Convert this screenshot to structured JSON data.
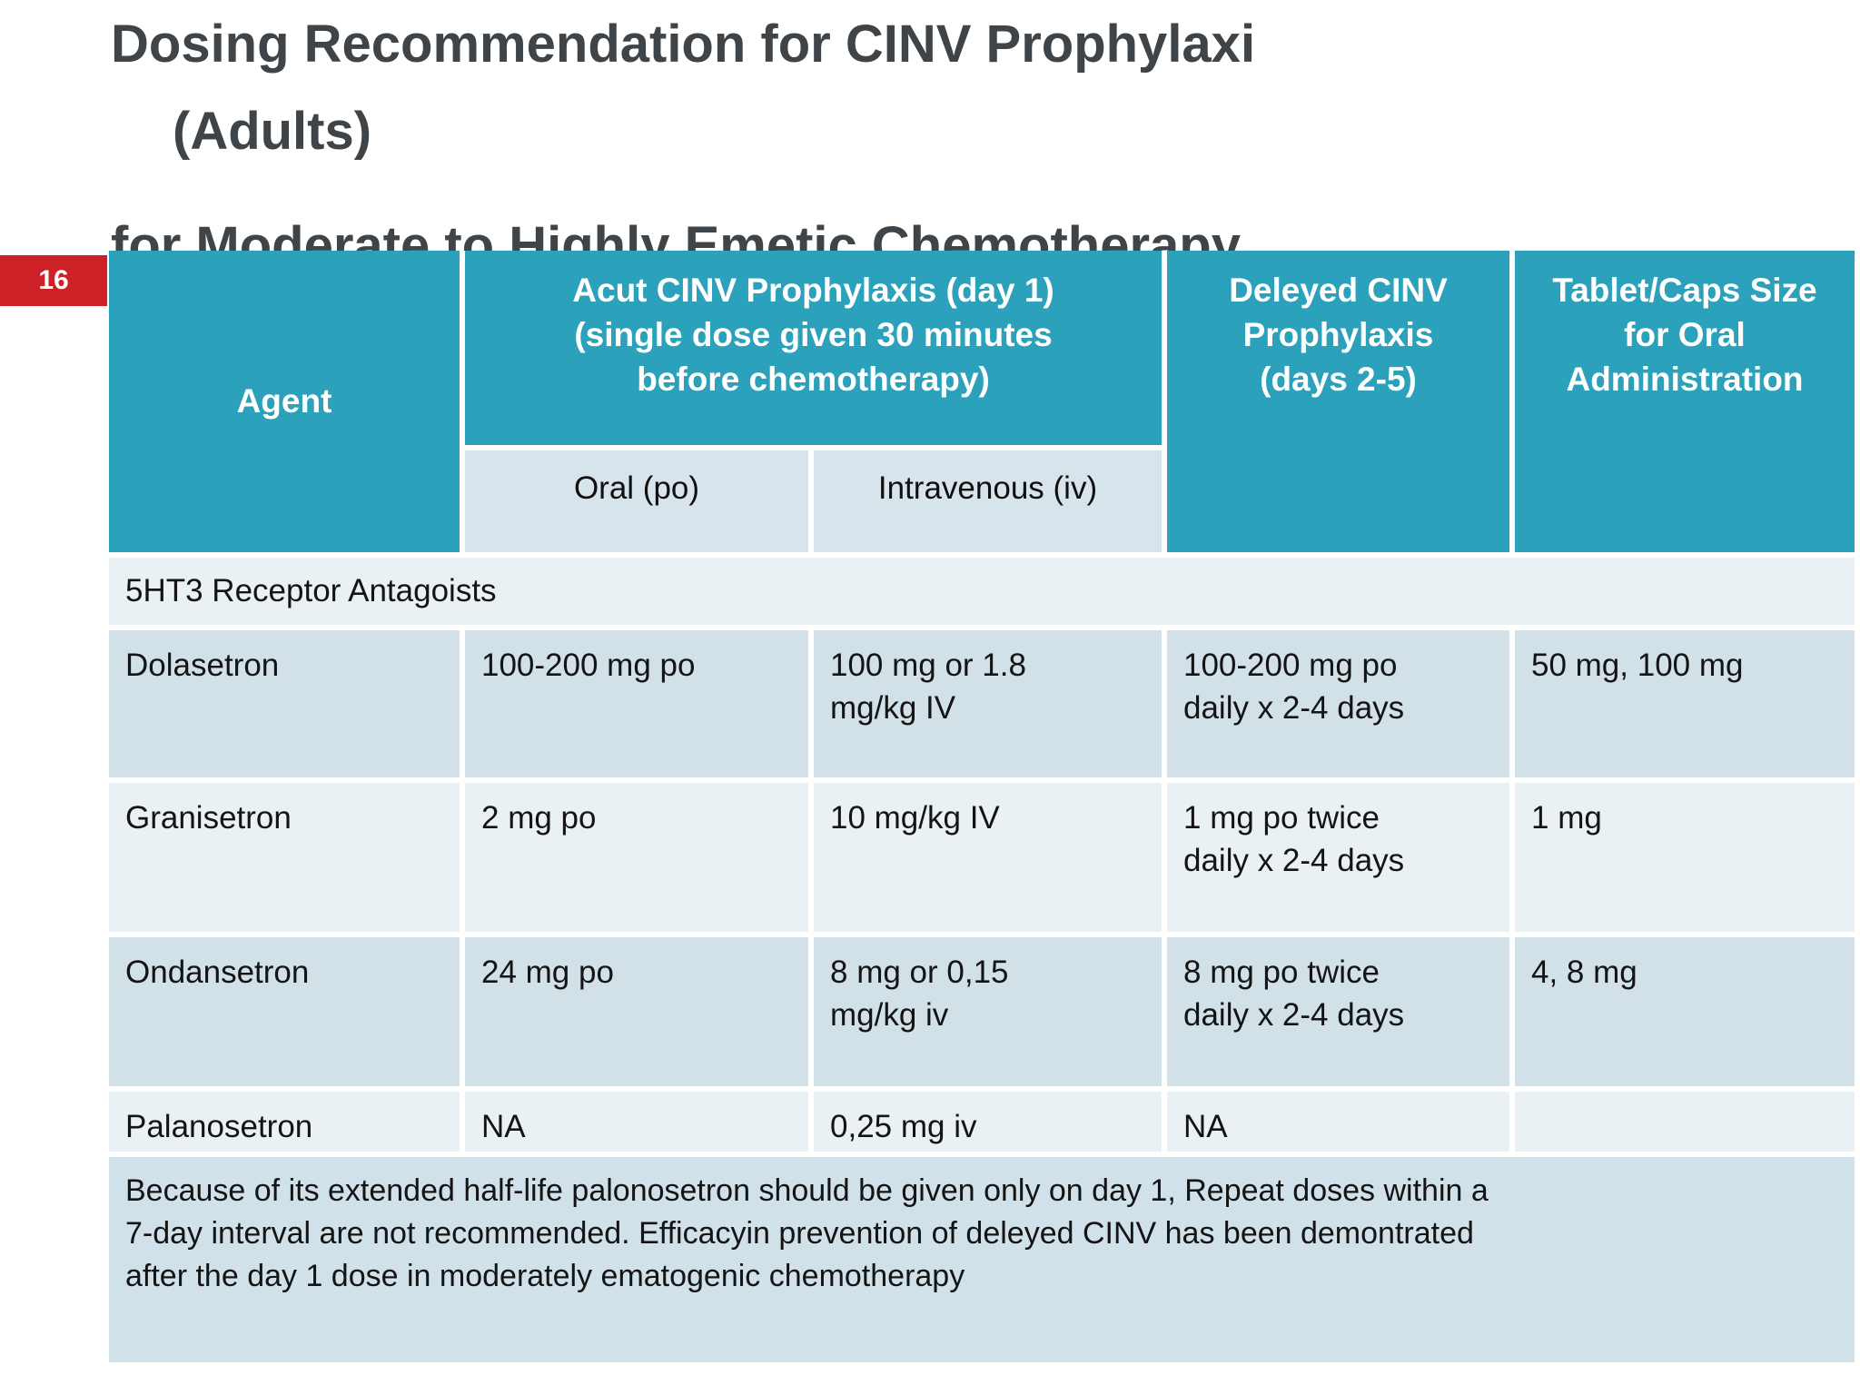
{
  "slide": {
    "title_line1": "Dosing Recommendation for CINV Prophylaxi",
    "title_line2": "(Adults)",
    "title_line3": "for Moderate to Highly Emetic Chemotherapy",
    "page_number": "16"
  },
  "colors": {
    "header_teal": "#2ba1bb",
    "badge_red": "#ce2027",
    "row_light": "#eaf1f5",
    "row_dark": "#d2e0e8",
    "note_bg": "#d0e1e9",
    "title_text": "#3f4448"
  },
  "table": {
    "header": {
      "agent": "Agent",
      "acute": "Acut CINV Prophylaxis (day 1)\n(single dose given 30 minutes\nbefore chemotherapy)",
      "oral": "Oral (po)",
      "iv": "Intravenous (iv)",
      "delayed": "Deleyed CINV\nProphylaxis\n(days 2-5)",
      "tablet": "Tablet/Caps Size\nfor Oral\nAdministration"
    },
    "section": "5HT3 Receptor Antagoists",
    "rows": [
      {
        "agent": "Dolasetron",
        "oral": "100-200 mg po",
        "iv": "100 mg or 1.8\nmg/kg IV",
        "delayed": "100-200 mg po\ndaily x 2-4 days",
        "tablet": "50 mg, 100 mg"
      },
      {
        "agent": "Granisetron",
        "oral": "2 mg po",
        "iv": "10 mg/kg IV",
        "delayed": "1 mg po twice\ndaily x 2-4 days",
        "tablet": "1 mg"
      },
      {
        "agent": "Ondansetron",
        "oral": "24 mg po",
        "iv": "8 mg or 0,15\nmg/kg iv",
        "delayed": "8 mg po twice\ndaily x  2-4 days",
        "tablet": "4, 8 mg"
      },
      {
        "agent": "Palanosetron",
        "oral": "NA",
        "iv": "0,25 mg iv",
        "delayed": "NA",
        "tablet": ""
      }
    ],
    "note": "Because of its extended half-life palonosetron should be given only on day 1, Repeat doses within a\n7-day interval are not recommended. Efficacyin prevention of deleyed CINV has been demontrated\nafter the day 1 dose in moderately ematogenic chemotherapy"
  }
}
